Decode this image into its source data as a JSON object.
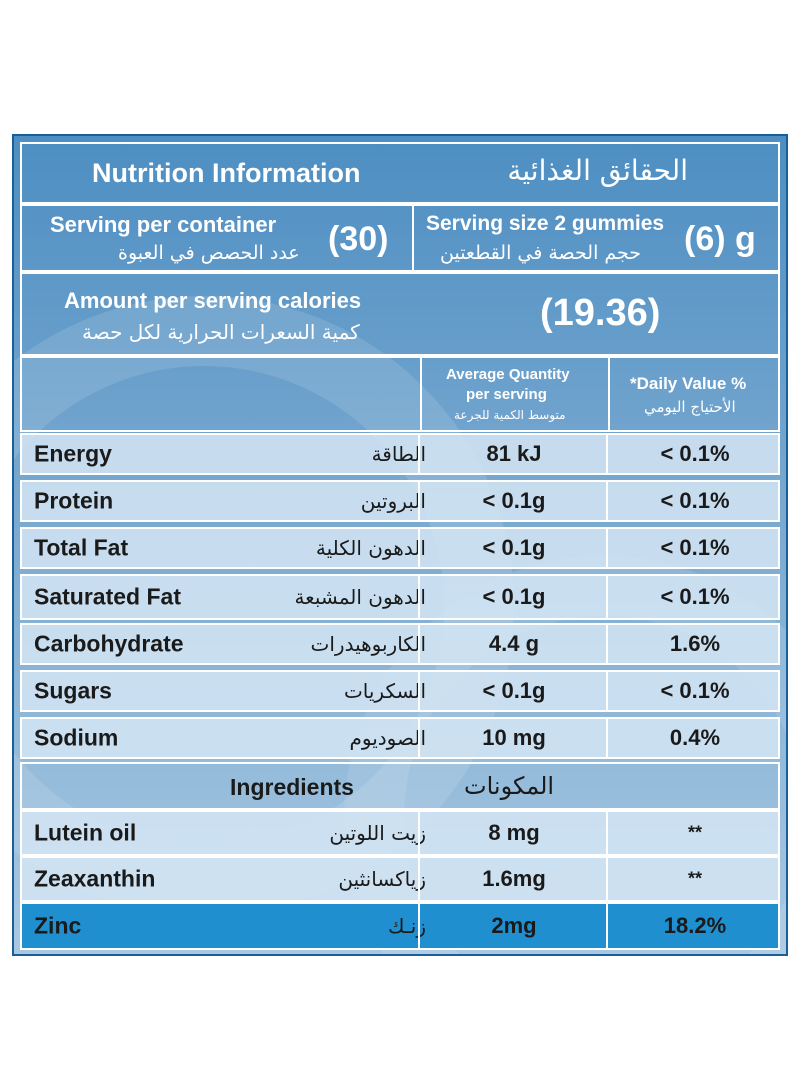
{
  "header": {
    "title_en": "Nutrition Information",
    "title_ar": "الحقائق الغذائية"
  },
  "serving": {
    "per_container_en": "Serving per container",
    "per_container_ar": "عدد الحصص في العبوة",
    "per_container_value": "(30)",
    "size_en": "Serving size 2 gummies",
    "size_ar": "حجم الحصة في القطعتين",
    "size_value": "(6) g"
  },
  "calories": {
    "label_en": "Amount per serving calories",
    "label_ar": "كمية السعرات الحرارية لكل حصة",
    "value": "(19.36)"
  },
  "columns": {
    "avg_qty_en_1": "Average Quantity",
    "avg_qty_en_2": "per serving",
    "avg_qty_ar": "متوسط الكمية للجرعة",
    "daily_value_en": "*Daily Value %",
    "daily_value_ar": "الأحتياج اليومي"
  },
  "nutrients": [
    {
      "name_en": "Energy",
      "name_ar": "الطاقة",
      "qty": "81 kJ",
      "dv": "< 0.1%"
    },
    {
      "name_en": "Protein",
      "name_ar": "البروتين",
      "qty": "< 0.1g",
      "dv": "< 0.1%"
    },
    {
      "name_en": "Total Fat",
      "name_ar": "الدهون الكلية",
      "qty": "< 0.1g",
      "dv": "< 0.1%"
    },
    {
      "name_en": "Saturated Fat",
      "name_ar": "الدهون المشبعة",
      "qty": "< 0.1g",
      "dv": "< 0.1%"
    },
    {
      "name_en": "Carbohydrate",
      "name_ar": "الكاربوهيدرات",
      "qty": "4.4 g",
      "dv": "1.6%"
    },
    {
      "name_en": "Sugars",
      "name_ar": "السكريات",
      "qty": "< 0.1g",
      "dv": "< 0.1%"
    },
    {
      "name_en": "Sodium",
      "name_ar": "الصوديوم",
      "qty": "10 mg",
      "dv": "0.4%"
    }
  ],
  "ingredients_header": {
    "en": "Ingredients",
    "ar": "المكونات"
  },
  "ingredients": [
    {
      "name_en": "Lutein oil",
      "name_ar": "زيت اللوتين",
      "qty": "8 mg",
      "dv": "**"
    },
    {
      "name_en": "Zeaxanthin",
      "name_ar": "زياكسانثين",
      "qty": "1.6mg",
      "dv": "**"
    },
    {
      "name_en": "Zinc",
      "name_ar": "زنـك",
      "qty": "2mg",
      "dv": "18.2%"
    }
  ],
  "colors": {
    "panel_top": "#4d8ec2",
    "row_bg": "#d2e4f3",
    "zinc_bg": "#1f8fd0",
    "border": "#ffffff"
  }
}
